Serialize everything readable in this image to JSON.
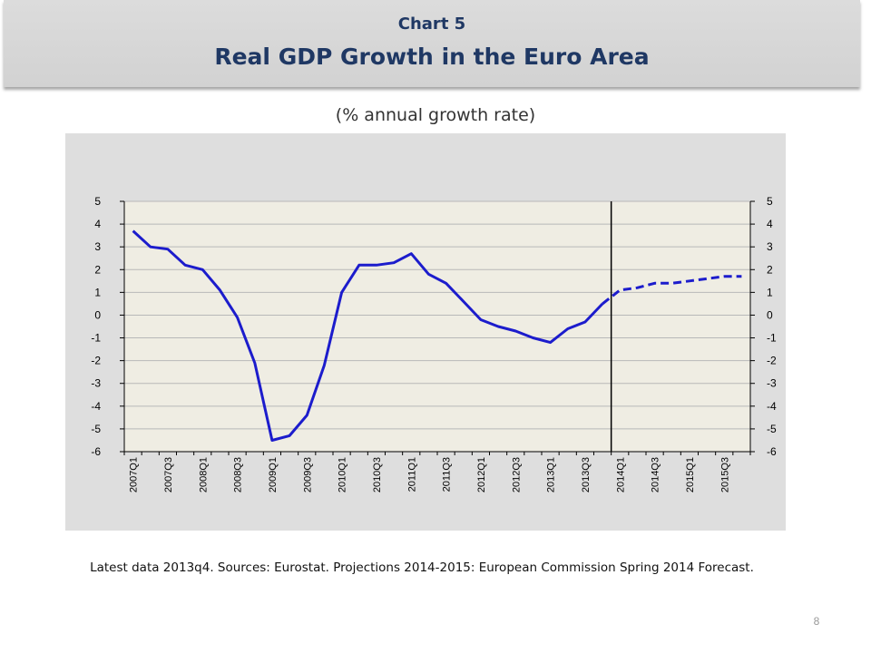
{
  "header": {
    "chart_number": "Chart 5",
    "title": "Real GDP Growth in the Euro Area"
  },
  "subtitle": "(% annual growth rate)",
  "footnote": "Latest data 2013q4. Sources: Eurostat. Projections 2014-2015: European Commission Spring 2014 Forecast.",
  "page_number": "8",
  "colors": {
    "line": "#1c1ccc",
    "plot_background": "#efede3",
    "panel_background": "#dedede",
    "grid": "#b8b8b8",
    "title_color": "#1f3864"
  },
  "chart_data": {
    "type": "line",
    "title": "Real GDP Growth in the Euro Area",
    "ylabel": "",
    "xlabel": "",
    "ylim": [
      -6,
      5
    ],
    "yticks": [
      5,
      4,
      3,
      2,
      1,
      0,
      -1,
      -2,
      -3,
      -4,
      -5,
      -6
    ],
    "secondary_y_axis": true,
    "grid": "horizontal",
    "categories": [
      "2007Q1",
      "2007Q2",
      "2007Q3",
      "2007Q4",
      "2008Q1",
      "2008Q2",
      "2008Q3",
      "2008Q4",
      "2009Q1",
      "2009Q2",
      "2009Q3",
      "2009Q4",
      "2010Q1",
      "2010Q2",
      "2010Q3",
      "2010Q4",
      "2011Q1",
      "2011Q2",
      "2011Q3",
      "2011Q4",
      "2012Q1",
      "2012Q2",
      "2012Q3",
      "2012Q4",
      "2013Q1",
      "2013Q2",
      "2013Q3",
      "2013Q4",
      "2014Q1",
      "2014Q2",
      "2014Q3",
      "2014Q4",
      "2015Q1",
      "2015Q2",
      "2015Q3",
      "2015Q4"
    ],
    "tick_labels": [
      "2007Q1",
      "2007Q3",
      "2008Q1",
      "2008Q3",
      "2009Q1",
      "2009Q3",
      "2010Q1",
      "2010Q3",
      "2011Q1",
      "2011Q3",
      "2012Q1",
      "2012Q3",
      "2013Q1",
      "2013Q3",
      "2014Q1",
      "2014Q3",
      "2015Q1",
      "2015Q3"
    ],
    "series": [
      {
        "style": "solid",
        "x": [
          "2007Q1",
          "2007Q2",
          "2007Q3",
          "2007Q4",
          "2008Q1",
          "2008Q2",
          "2008Q3",
          "2008Q4",
          "2009Q1",
          "2009Q2",
          "2009Q3",
          "2009Q4",
          "2010Q1",
          "2010Q2",
          "2010Q3",
          "2010Q4",
          "2011Q1",
          "2011Q2",
          "2011Q3",
          "2011Q4",
          "2012Q1",
          "2012Q2",
          "2012Q3",
          "2012Q4",
          "2013Q1",
          "2013Q2",
          "2013Q3",
          "2013Q4"
        ],
        "values": [
          3.7,
          3.0,
          2.9,
          2.2,
          2.0,
          1.1,
          -0.1,
          -2.1,
          -5.5,
          -5.3,
          -4.4,
          -2.2,
          1.0,
          2.2,
          2.2,
          2.3,
          2.7,
          1.8,
          1.4,
          0.6,
          -0.2,
          -0.5,
          -0.7,
          -1.0,
          -1.2,
          -0.6,
          -0.3,
          0.5
        ]
      },
      {
        "style": "dashed",
        "x": [
          "2013Q4",
          "2014Q1",
          "2014Q2",
          "2014Q3",
          "2014Q4",
          "2015Q1",
          "2015Q2",
          "2015Q3",
          "2015Q4"
        ],
        "values": [
          0.5,
          1.1,
          1.2,
          1.4,
          1.4,
          1.5,
          1.6,
          1.7,
          1.7
        ]
      }
    ],
    "vertical_marker": "2013Q4"
  }
}
